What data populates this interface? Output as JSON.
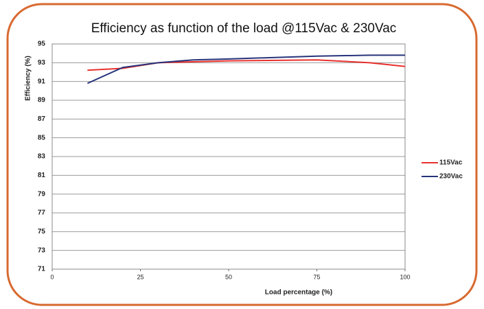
{
  "chart_data": {
    "type": "line",
    "title": "Efficiency as function of the load @115Vac & 230Vac",
    "xlabel": "Load percentage (%)",
    "ylabel": "Efficiency  (%)",
    "x": [
      10,
      20,
      30,
      40,
      50,
      75,
      90,
      100
    ],
    "series": [
      {
        "name": "115Vac",
        "color": "#e8302c",
        "values": [
          92.2,
          92.4,
          93.0,
          93.1,
          93.2,
          93.3,
          93.0,
          92.6
        ]
      },
      {
        "name": "230Vac",
        "color": "#26337a",
        "values": [
          90.8,
          92.5,
          93.0,
          93.3,
          93.4,
          93.7,
          93.8,
          93.8
        ]
      }
    ],
    "xlim": [
      0,
      100
    ],
    "xticks": [
      0,
      25,
      50,
      75,
      100
    ],
    "ylim": [
      71,
      95
    ],
    "yticks": [
      71,
      73,
      75,
      77,
      79,
      81,
      83,
      85,
      87,
      89,
      91,
      93,
      95
    ],
    "grid": true,
    "legend": "right"
  }
}
